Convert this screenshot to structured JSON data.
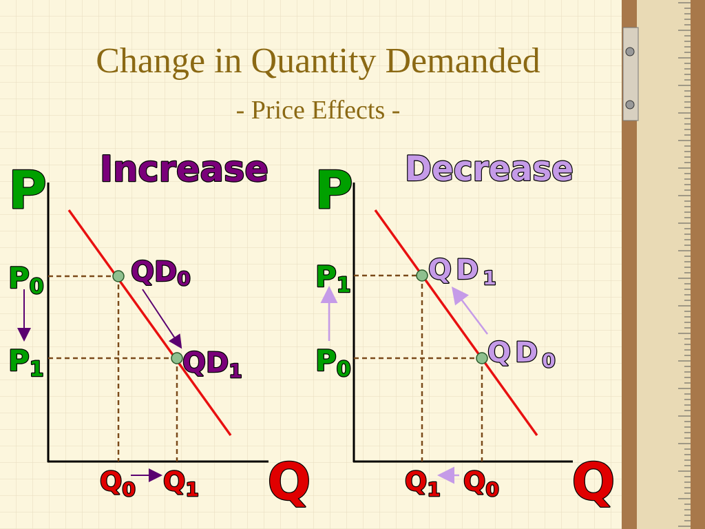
{
  "header": {
    "title": "Change in Quantity Demanded",
    "subtitle": "- Price Effects -"
  },
  "panels": [
    {
      "heading": "Increase",
      "y_axis": "P",
      "x_axis": "Q",
      "price_labels": [
        {
          "main": "P",
          "sub": "0"
        },
        {
          "main": "P",
          "sub": "1"
        }
      ],
      "demand_labels": [
        {
          "main": "QD",
          "sub": "0"
        },
        {
          "main": "QD",
          "sub": "1"
        }
      ],
      "quantity_labels": [
        {
          "main": "Q",
          "sub": "0"
        },
        {
          "main": "Q",
          "sub": "1"
        }
      ]
    },
    {
      "heading": "Decrease",
      "y_axis": "P",
      "x_axis": "Q",
      "price_labels": [
        {
          "main": "P",
          "sub": "1"
        },
        {
          "main": "P",
          "sub": "0"
        }
      ],
      "demand_labels": [
        {
          "main": "QD",
          "sub": "1"
        },
        {
          "main": "QD",
          "sub": "0"
        }
      ],
      "quantity_labels": [
        {
          "main": "Q",
          "sub": "1"
        },
        {
          "main": "Q",
          "sub": "0"
        }
      ]
    }
  ]
}
